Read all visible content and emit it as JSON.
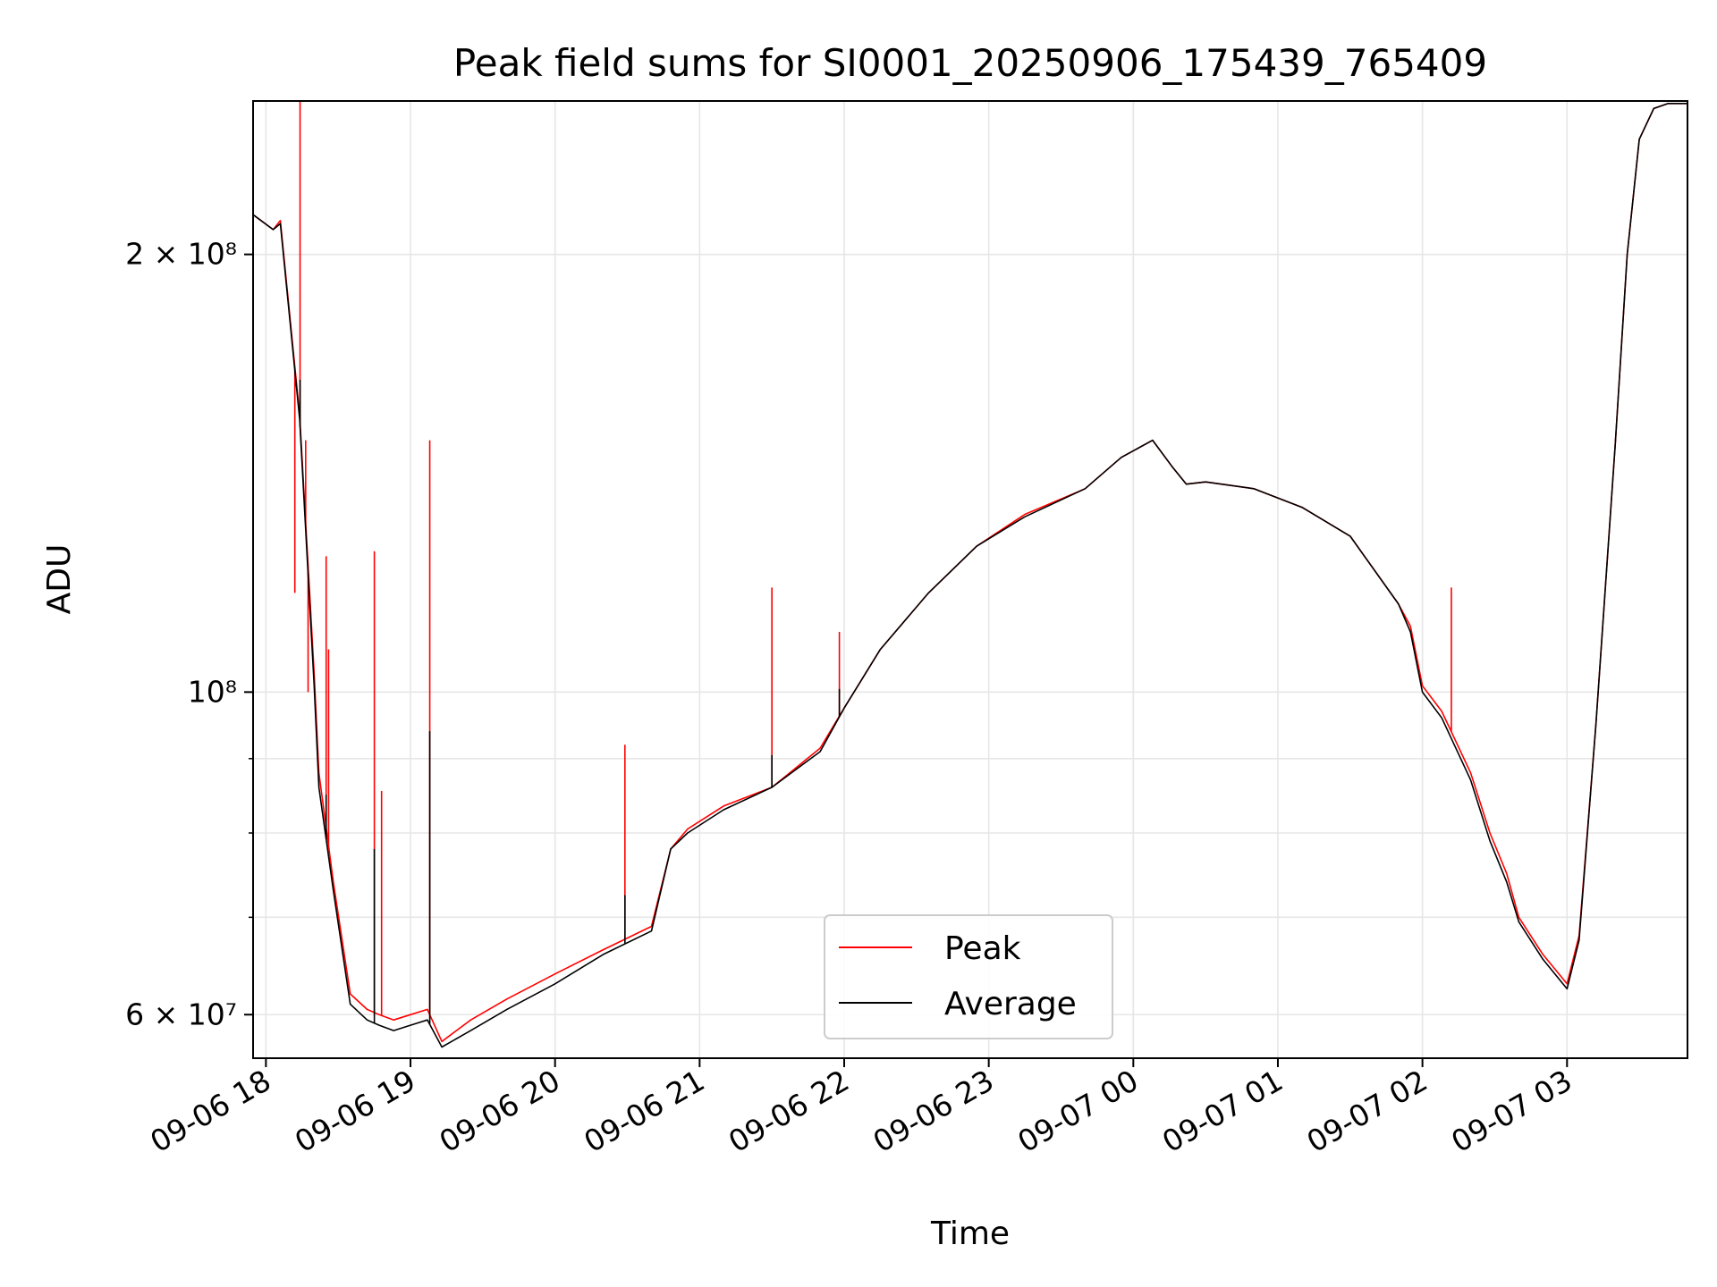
{
  "chart_data": {
    "type": "line",
    "title": "Peak field sums for SI0001_20250906_175439_765409",
    "xlabel": "Time",
    "ylabel": "ADU",
    "y_scale": "log",
    "ylim": [
      56000000,
      255000000
    ],
    "xlim": [
      "2025-09-06 17:54:40",
      "2025-09-07 03:50:00"
    ],
    "grid": true,
    "legend_position": "lower center",
    "x_ticks": [
      {
        "value": "2025-09-06 18:00",
        "label": "09-06 18"
      },
      {
        "value": "2025-09-06 19:00",
        "label": "09-06 19"
      },
      {
        "value": "2025-09-06 20:00",
        "label": "09-06 20"
      },
      {
        "value": "2025-09-06 21:00",
        "label": "09-06 21"
      },
      {
        "value": "2025-09-06 22:00",
        "label": "09-06 22"
      },
      {
        "value": "2025-09-06 23:00",
        "label": "09-06 23"
      },
      {
        "value": "2025-09-07 00:00",
        "label": "09-07 00"
      },
      {
        "value": "2025-09-07 01:00",
        "label": "09-07 01"
      },
      {
        "value": "2025-09-07 02:00",
        "label": "09-07 02"
      },
      {
        "value": "2025-09-07 03:00",
        "label": "09-07 03"
      }
    ],
    "y_ticks_major": [
      {
        "value": 60000000,
        "label": "6 × 10⁷"
      },
      {
        "value": 100000000,
        "label": "10⁸"
      },
      {
        "value": 200000000,
        "label": "2 × 10⁸"
      }
    ],
    "y_ticks_minor": [
      70000000,
      80000000,
      90000000
    ],
    "series": [
      {
        "name": "Peak",
        "color": "#ff0000",
        "x": [
          "2025-09-06 17:54:40",
          "2025-09-06 18:03:00",
          "2025-09-06 18:06:00",
          "2025-09-06 18:14:00",
          "2025-09-06 18:20:00",
          "2025-09-06 18:22:00",
          "2025-09-06 18:28:00",
          "2025-09-06 18:35:00",
          "2025-09-06 18:42:00",
          "2025-09-06 18:47:00",
          "2025-09-06 18:53:00",
          "2025-09-06 19:00:00",
          "2025-09-06 19:07:00",
          "2025-09-06 19:13:00",
          "2025-09-06 19:25:00",
          "2025-09-06 19:40:00",
          "2025-09-06 20:00:00",
          "2025-09-06 20:20:00",
          "2025-09-06 20:40:00",
          "2025-09-06 20:48:00",
          "2025-09-06 20:55:00",
          "2025-09-06 21:10:00",
          "2025-09-06 21:30:00",
          "2025-09-06 21:50:00",
          "2025-09-06 22:00:00",
          "2025-09-06 22:15:00",
          "2025-09-06 22:35:00",
          "2025-09-06 22:55:00",
          "2025-09-06 23:15:00",
          "2025-09-06 23:40:00",
          "2025-09-06 23:55:00",
          "2025-09-07 00:08:00",
          "2025-09-07 00:16:00",
          "2025-09-07 00:22:00",
          "2025-09-07 00:30:00",
          "2025-09-07 00:50:00",
          "2025-09-07 01:10:00",
          "2025-09-07 01:30:00",
          "2025-09-07 01:50:00",
          "2025-09-07 01:55:00",
          "2025-09-07 02:00:00",
          "2025-09-07 02:08:00",
          "2025-09-07 02:20:00",
          "2025-09-07 02:28:00",
          "2025-09-07 02:35:00",
          "2025-09-07 02:40:00",
          "2025-09-07 02:50:00",
          "2025-09-07 03:00:00",
          "2025-09-07 03:05:00",
          "2025-09-07 03:12:00",
          "2025-09-07 03:20:00",
          "2025-09-07 03:25:00",
          "2025-09-07 03:30:00",
          "2025-09-07 03:36:00",
          "2025-09-07 03:42:00",
          "2025-09-07 03:50:00"
        ],
        "y": [
          213000000,
          208000000,
          211000000,
          155000000,
          103000000,
          88000000,
          74000000,
          62000000,
          60500000,
          60000000,
          59500000,
          60000000,
          60500000,
          57500000,
          59500000,
          61500000,
          64000000,
          66500000,
          69000000,
          78000000,
          80500000,
          83500000,
          86000000,
          91500000,
          97500000,
          107000000,
          117000000,
          126000000,
          132500000,
          138000000,
          145000000,
          149000000,
          143000000,
          139000000,
          139500000,
          138000000,
          134000000,
          128000000,
          115000000,
          111000000,
          101000000,
          97000000,
          88000000,
          80000000,
          75000000,
          70000000,
          66000000,
          63000000,
          68000000,
          95000000,
          148000000,
          200000000,
          240000000,
          252000000,
          254000000,
          254000000
        ],
        "spikes": [
          {
            "x": "2025-09-06 18:12:00",
            "y": 117000000
          },
          {
            "x": "2025-09-06 18:14:10",
            "y": 255000000
          },
          {
            "x": "2025-09-06 18:16:30",
            "y": 149000000
          },
          {
            "x": "2025-09-06 18:17:30",
            "y": 100000000
          },
          {
            "x": "2025-09-06 18:25:00",
            "y": 124000000
          },
          {
            "x": "2025-09-06 18:26:00",
            "y": 107000000
          },
          {
            "x": "2025-09-06 18:45:00",
            "y": 125000000
          },
          {
            "x": "2025-09-06 18:48:00",
            "y": 85500000
          },
          {
            "x": "2025-09-06 19:08:00",
            "y": 149000000
          },
          {
            "x": "2025-09-06 20:29:00",
            "y": 92000000
          },
          {
            "x": "2025-09-06 21:30:00",
            "y": 118000000
          },
          {
            "x": "2025-09-06 21:58:00",
            "y": 110000000
          },
          {
            "x": "2025-09-07 02:12:00",
            "y": 118000000
          }
        ]
      },
      {
        "name": "Average",
        "color": "#000000",
        "x": [
          "2025-09-06 17:54:40",
          "2025-09-06 18:03:00",
          "2025-09-06 18:06:00",
          "2025-09-06 18:14:00",
          "2025-09-06 18:20:00",
          "2025-09-06 18:22:00",
          "2025-09-06 18:28:00",
          "2025-09-06 18:35:00",
          "2025-09-06 18:42:00",
          "2025-09-06 18:47:00",
          "2025-09-06 18:53:00",
          "2025-09-06 19:00:00",
          "2025-09-06 19:07:00",
          "2025-09-06 19:13:00",
          "2025-09-06 19:25:00",
          "2025-09-06 19:40:00",
          "2025-09-06 20:00:00",
          "2025-09-06 20:20:00",
          "2025-09-06 20:40:00",
          "2025-09-06 20:48:00",
          "2025-09-06 20:55:00",
          "2025-09-06 21:10:00",
          "2025-09-06 21:30:00",
          "2025-09-06 21:50:00",
          "2025-09-06 22:00:00",
          "2025-09-06 22:15:00",
          "2025-09-06 22:35:00",
          "2025-09-06 22:55:00",
          "2025-09-06 23:15:00",
          "2025-09-06 23:40:00",
          "2025-09-06 23:55:00",
          "2025-09-07 00:08:00",
          "2025-09-07 00:16:00",
          "2025-09-07 00:22:00",
          "2025-09-07 00:30:00",
          "2025-09-07 00:50:00",
          "2025-09-07 01:10:00",
          "2025-09-07 01:30:00",
          "2025-09-07 01:50:00",
          "2025-09-07 01:55:00",
          "2025-09-07 02:00:00",
          "2025-09-07 02:08:00",
          "2025-09-07 02:20:00",
          "2025-09-07 02:28:00",
          "2025-09-07 02:35:00",
          "2025-09-07 02:40:00",
          "2025-09-07 02:50:00",
          "2025-09-07 03:00:00",
          "2025-09-07 03:05:00",
          "2025-09-07 03:12:00",
          "2025-09-07 03:20:00",
          "2025-09-07 03:25:00",
          "2025-09-07 03:30:00",
          "2025-09-07 03:36:00",
          "2025-09-07 03:42:00",
          "2025-09-07 03:50:00"
        ],
        "y": [
          213000000,
          208000000,
          210000000,
          154000000,
          101000000,
          86000000,
          73000000,
          61000000,
          59500000,
          59000000,
          58500000,
          59000000,
          59500000,
          57000000,
          58500000,
          60500000,
          63000000,
          66000000,
          68500000,
          78000000,
          80000000,
          83000000,
          86000000,
          91000000,
          97500000,
          107000000,
          117000000,
          126000000,
          132000000,
          138000000,
          145000000,
          149000000,
          143000000,
          139000000,
          139500000,
          138000000,
          134000000,
          128000000,
          115000000,
          110000000,
          100000000,
          96000000,
          87000000,
          79000000,
          74000000,
          69500000,
          65500000,
          62500000,
          67500000,
          95000000,
          148000000,
          200000000,
          240000000,
          252000000,
          254000000,
          254000000
        ],
        "spikes": [
          {
            "x": "2025-09-06 18:14:10",
            "y": 164000000
          },
          {
            "x": "2025-09-06 18:25:00",
            "y": 85000000
          },
          {
            "x": "2025-09-06 18:45:00",
            "y": 78000000
          },
          {
            "x": "2025-09-06 19:08:00",
            "y": 94000000
          },
          {
            "x": "2025-09-06 20:29:00",
            "y": 72500000
          },
          {
            "x": "2025-09-06 21:30:00",
            "y": 90500000
          },
          {
            "x": "2025-09-06 21:58:00",
            "y": 100500000
          }
        ]
      }
    ]
  }
}
